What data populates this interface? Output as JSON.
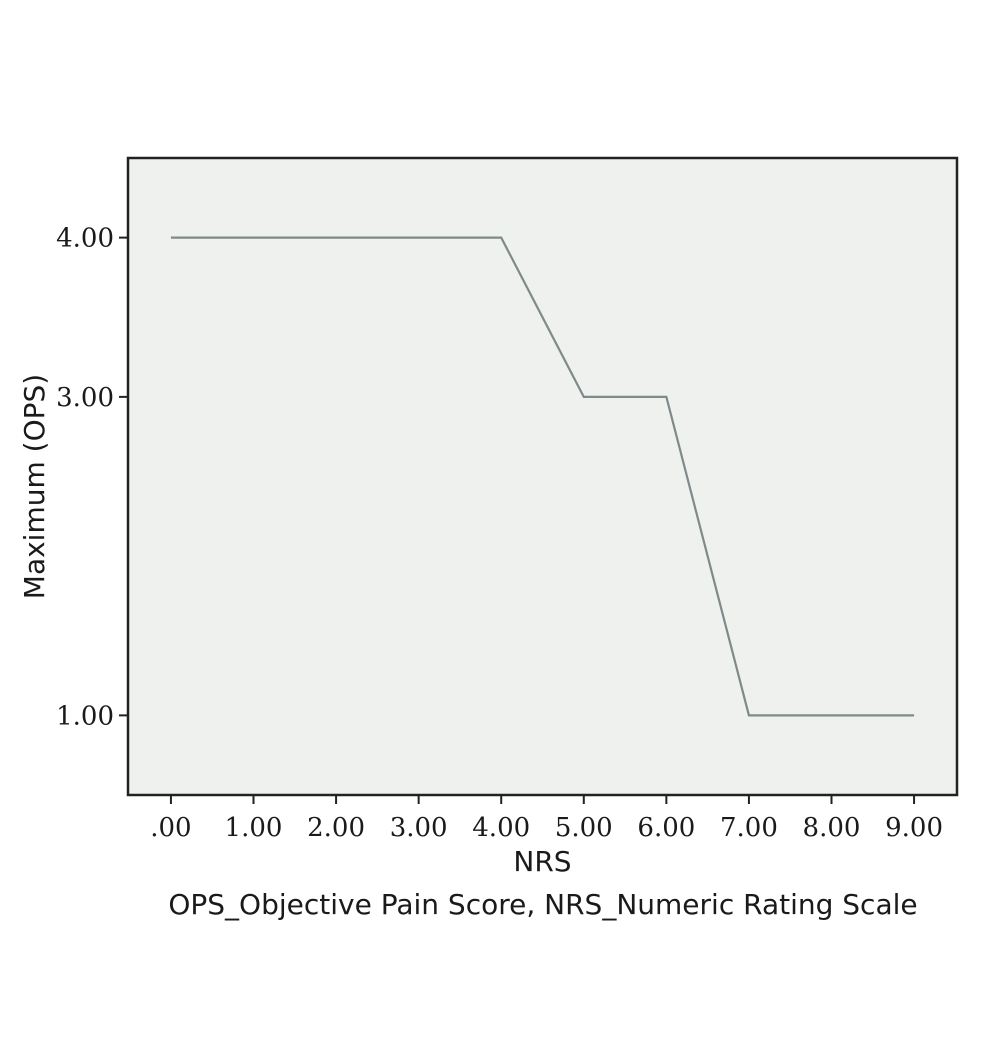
{
  "chart_data": {
    "type": "line",
    "x": [
      0,
      1,
      2,
      3,
      4,
      5,
      6,
      7,
      8,
      9
    ],
    "series": [
      {
        "values": [
          4,
          4,
          4,
          4,
          4,
          3,
          3,
          1,
          1,
          1
        ]
      }
    ],
    "xlabel": "NRS",
    "ylabel": "Maximum (OPS)",
    "x_tick_labels": [
      ".00",
      "1.00",
      "2.00",
      "3.00",
      "4.00",
      "5.00",
      "6.00",
      "7.00",
      "8.00",
      "9.00"
    ],
    "y_ticks": [
      1,
      3,
      4
    ],
    "y_tick_labels": [
      "1.00",
      "3.00",
      "4.00"
    ],
    "xlim": [
      -0.52,
      9.52
    ],
    "ylim": [
      0.5,
      4.5
    ],
    "grid": false,
    "line_color": "#7f8a8a",
    "plot_background": "#eff1ef",
    "caption": "OPS_Objective Pain Score, NRS_Numeric Rating Scale"
  }
}
